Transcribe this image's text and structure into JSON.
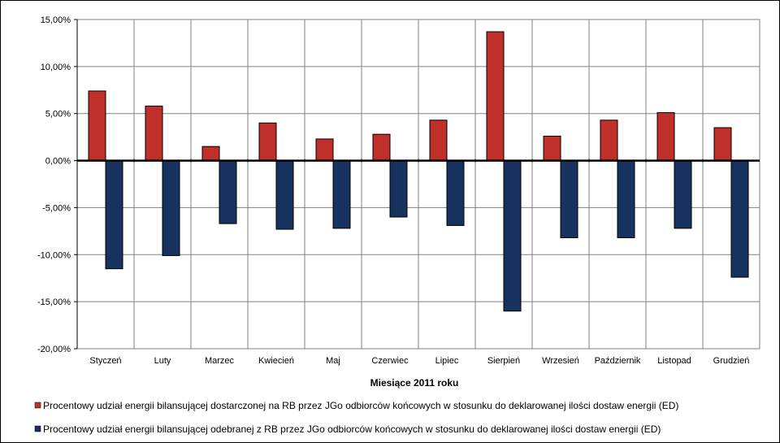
{
  "chart_data": {
    "type": "bar",
    "title": "",
    "xlabel": "Miesiące 2011  roku",
    "ylabel": "",
    "ylim": [
      -20,
      15
    ],
    "yticks": [
      15,
      10,
      5,
      0,
      -5,
      -10,
      -15,
      -20
    ],
    "ytick_labels": [
      "15,00%",
      "10,00%",
      "5,00%",
      "0,00%",
      "-5,00%",
      "-10,00%",
      "-15,00%",
      "-20,00%"
    ],
    "categories": [
      "Styczeń",
      "Luty",
      "Marzec",
      "Kwiecień",
      "Maj",
      "Czerwiec",
      "Lipiec",
      "Sierpień",
      "Wrzesień",
      "Październik",
      "Listopad",
      "Grudzień"
    ],
    "series": [
      {
        "name": "Procentowy udział energii bilansującej dostarczonej na RB przez JGo odbiorców końcowych w stosunku do deklarowanej ilości dostaw energii (ED)",
        "color": "#C0302B",
        "values": [
          7.4,
          5.8,
          1.5,
          4.0,
          2.3,
          2.8,
          4.3,
          13.7,
          2.6,
          4.3,
          5.1,
          3.5
        ]
      },
      {
        "name": "Procentowy udział energii bilansującej odebranej z RB przez JGo odbiorców końcowych w stosunku do deklarowanej ilości dostaw energii (ED)",
        "color": "#17325F",
        "values": [
          -11.5,
          -10.1,
          -6.7,
          -7.3,
          -7.2,
          -6.0,
          -6.9,
          -16.0,
          -8.2,
          -8.2,
          -7.2,
          -12.4
        ]
      }
    ],
    "grid": true,
    "legend_position": "bottom"
  }
}
